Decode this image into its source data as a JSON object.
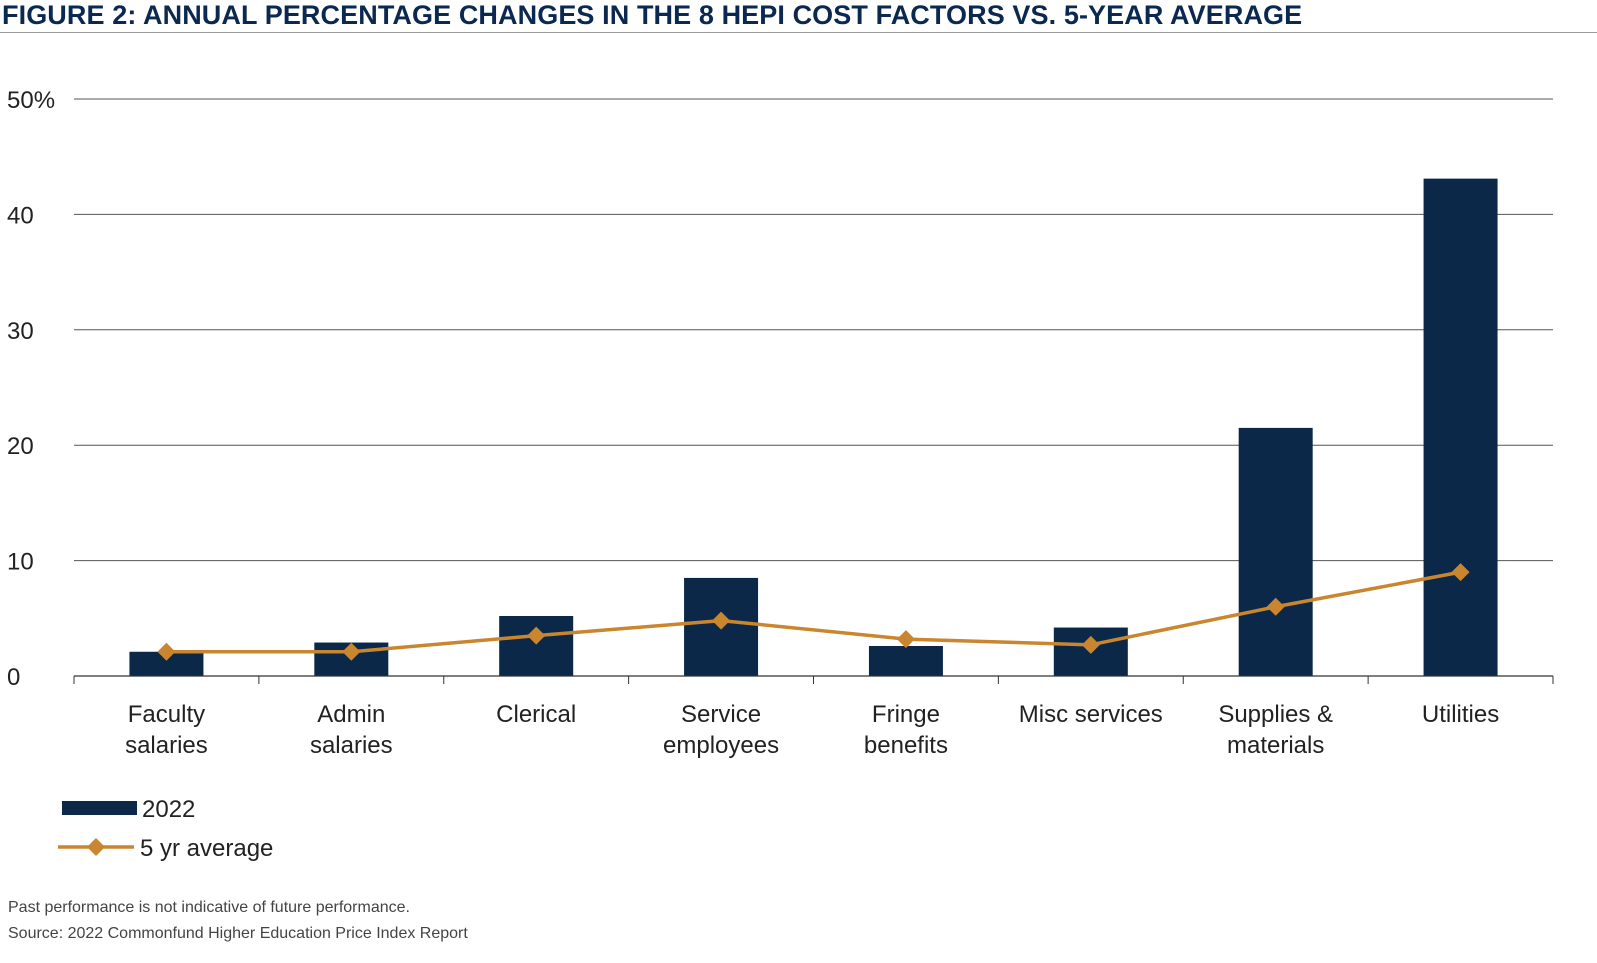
{
  "figure": {
    "title": "FIGURE 2: ANNUAL PERCENTAGE CHANGES IN THE 8 HEPI COST FACTORS VS. 5-YEAR AVERAGE"
  },
  "footnotes": {
    "disclaimer": "Past performance is not indicative of future performance.",
    "source": "Source: 2022 Commonfund Higher Education Price Index Report"
  },
  "colors": {
    "bar": "#0b2849",
    "line": "#c9862f",
    "title": "#0a2850",
    "grid": "#555555"
  },
  "chart_data": {
    "type": "bar",
    "title": "FIGURE 2: ANNUAL PERCENTAGE CHANGES IN THE 8 HEPI COST FACTORS VS. 5-YEAR AVERAGE",
    "xlabel": "",
    "ylabel": "",
    "ylim": [
      0,
      50
    ],
    "yticks": [
      0,
      10,
      20,
      30,
      40,
      50
    ],
    "ytick_labels": [
      "0",
      "10",
      "20",
      "30",
      "40",
      "50%"
    ],
    "grid": true,
    "legend_position": "bottom-left",
    "categories": [
      [
        "Faculty",
        "salaries"
      ],
      [
        "Admin",
        "salaries"
      ],
      [
        "Clerical"
      ],
      [
        "Service",
        "employees"
      ],
      [
        "Fringe",
        "benefits"
      ],
      [
        "Misc services"
      ],
      [
        "Supplies &",
        "materials"
      ],
      [
        "Utilities"
      ]
    ],
    "series": [
      {
        "name": "2022",
        "type": "bar",
        "values": [
          2.1,
          2.9,
          5.2,
          8.5,
          2.6,
          4.2,
          21.5,
          43.1
        ]
      },
      {
        "name": "5 yr average",
        "type": "line",
        "marker": "diamond",
        "values": [
          2.1,
          2.1,
          3.5,
          4.8,
          3.2,
          2.7,
          6.0,
          9.0
        ]
      }
    ]
  }
}
